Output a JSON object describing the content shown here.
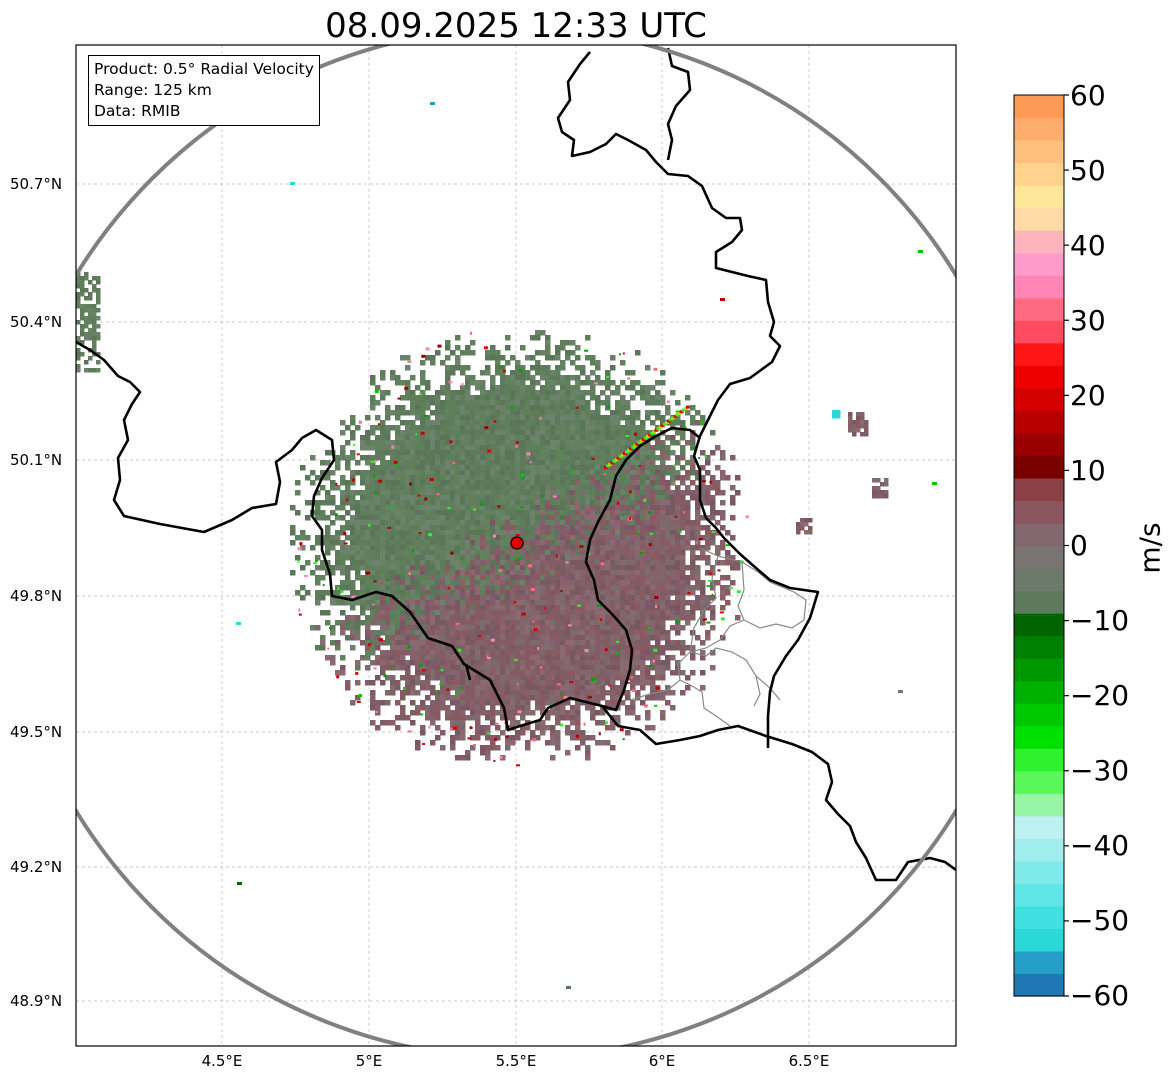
{
  "title": "08.09.2025 12:33 UTC",
  "info": {
    "product": "Product: 0.5° Radial Velocity",
    "range": "Range: 125 km",
    "source": "Data: RMIB"
  },
  "axes": {
    "lat_ticks": [
      "50.7°N",
      "50.4°N",
      "50.1°N",
      "49.8°N",
      "49.5°N",
      "49.2°N",
      "48.9°N"
    ],
    "lon_ticks": [
      "4.5°E",
      "5°E",
      "5.5°E",
      "6°E",
      "6.5°E"
    ]
  },
  "colorbar": {
    "unit": "m/s",
    "ticks": [
      "60",
      "50",
      "40",
      "30",
      "20",
      "10",
      "0",
      "−10",
      "−20",
      "−30",
      "−40",
      "−50",
      "−60"
    ],
    "range": [
      -60,
      60
    ],
    "colors": [
      "#1f78b4",
      "#239fc8",
      "#2ad8d8",
      "#40e0e0",
      "#60e6e6",
      "#80eaea",
      "#a0eeee",
      "#bdf0f0",
      "#98f5a8",
      "#5af75a",
      "#2ef22e",
      "#00e000",
      "#00c800",
      "#00b000",
      "#009800",
      "#008000",
      "#006400",
      "#5d7a5d",
      "#6c7a6c",
      "#7a7472",
      "#846870",
      "#8a5660",
      "#8a4045",
      "#7a0000",
      "#9a0000",
      "#b80000",
      "#d40000",
      "#ee0000",
      "#ff1515",
      "#ff4b5f",
      "#ff6a82",
      "#ff85b5",
      "#ff9bcb",
      "#ffb3bd",
      "#ffdba8",
      "#ffe79a",
      "#ffd38e",
      "#ffc07e",
      "#ffad6e",
      "#ff9955"
    ]
  },
  "radar": {
    "site": "radar-site"
  }
}
